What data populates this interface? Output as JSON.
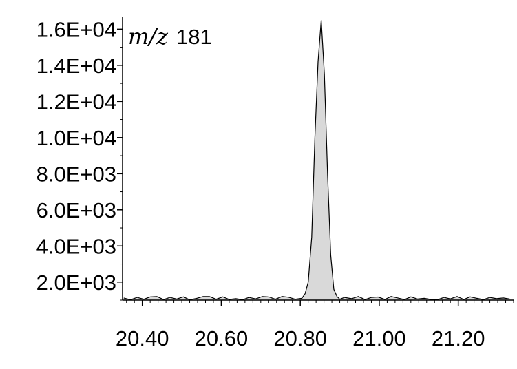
{
  "chart_data": {
    "type": "area",
    "title": "",
    "xlabel": "",
    "ylabel": "",
    "annotation": {
      "italic": "m/z",
      "value": "181"
    },
    "xlim": [
      20.35,
      21.34
    ],
    "ylim": [
      1000,
      16700
    ],
    "x_ticks": [
      20.4,
      20.6,
      20.8,
      21.0,
      21.2
    ],
    "x_tick_labels": [
      "20.40",
      "20.60",
      "20.80",
      "21.00",
      "21.20"
    ],
    "y_ticks": [
      2000,
      4000,
      6000,
      8000,
      10000,
      12000,
      14000,
      16000
    ],
    "y_tick_labels": [
      "2.0E+03",
      "4.0E+03",
      "6.0E+03",
      "8.0E+03",
      "1.0E+04",
      "1.2E+04",
      "1.4E+04",
      "1.6E+04"
    ],
    "grid": false,
    "fill_color": "#d9d9d9",
    "line_color": "#000000",
    "series": [
      {
        "x": [
          20.353,
          20.37,
          20.387,
          20.404,
          20.42,
          20.437,
          20.454,
          20.47,
          20.487,
          20.504,
          20.52,
          20.537,
          20.554,
          20.57,
          20.587,
          20.604,
          20.62,
          20.637,
          20.654,
          20.67,
          20.687,
          20.704,
          20.72,
          20.737,
          20.754,
          20.77,
          20.787,
          20.804,
          20.812,
          20.82,
          20.829,
          20.837,
          20.845,
          20.853,
          20.861,
          20.869,
          20.877,
          20.885,
          20.893,
          20.9,
          20.912,
          20.93,
          20.947,
          20.964,
          20.98,
          20.997,
          21.014,
          21.03,
          21.047,
          21.064,
          21.08,
          21.097,
          21.114,
          21.13,
          21.147,
          21.164,
          21.18,
          21.197,
          21.214,
          21.23,
          21.247,
          21.264,
          21.28,
          21.297,
          21.314,
          21.33
        ],
        "y": [
          1120,
          1020,
          1150,
          1050,
          1180,
          1200,
          1030,
          1150,
          1060,
          1180,
          1020,
          1090,
          1200,
          1200,
          1050,
          1180,
          1040,
          1080,
          1020,
          1150,
          1070,
          1200,
          1180,
          1050,
          1200,
          1160,
          1050,
          1100,
          1350,
          2000,
          4500,
          10000,
          14200,
          16500,
          13500,
          8000,
          3500,
          1600,
          1200,
          1050,
          1150,
          1080,
          1200,
          1030,
          1150,
          1170,
          1040,
          1200,
          1120,
          1030,
          1180,
          1060,
          1100,
          1040,
          1020,
          1150,
          1070,
          1200,
          1040,
          1180,
          1100,
          1030,
          1150,
          1080,
          1120,
          1060
        ]
      }
    ]
  }
}
